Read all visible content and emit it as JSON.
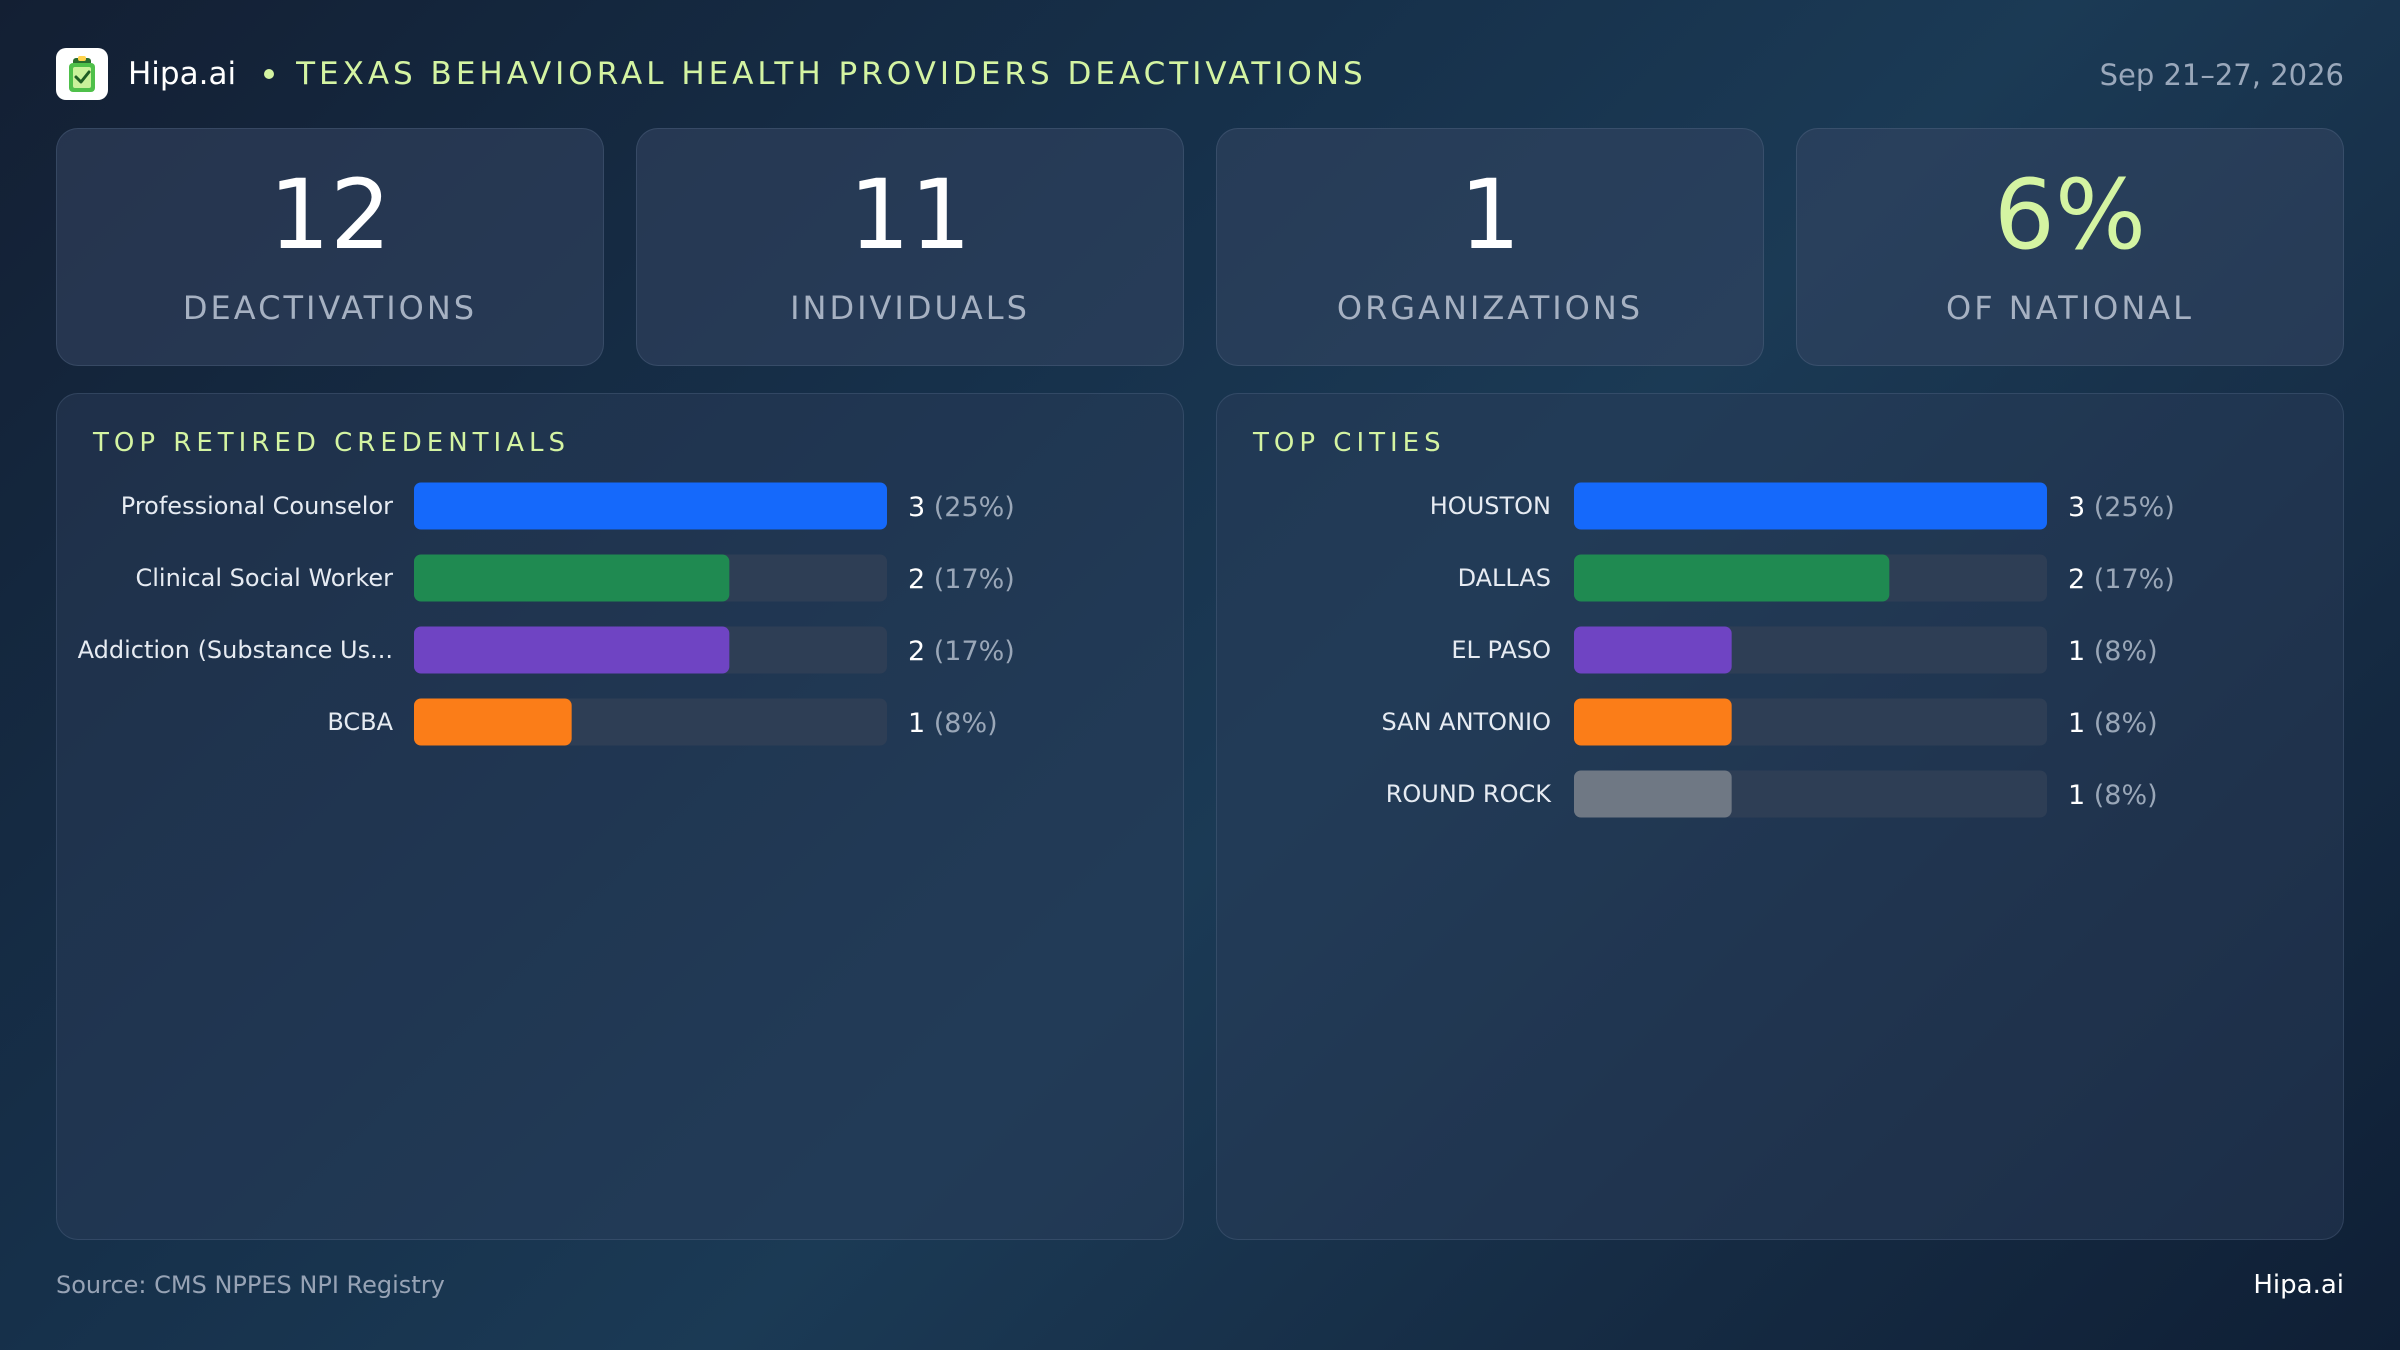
{
  "colors": {
    "accent": "#d4f4a2",
    "track": "#2e3e55",
    "blue": "#1569fb",
    "green": "#1f8a51",
    "purple": "#6f44c3",
    "orange": "#fb7d18",
    "gray": "#6f7884"
  },
  "header": {
    "brand": "Hipa.ai",
    "title": "TEXAS BEHAVIORAL HEALTH PROVIDERS DEACTIVATIONS",
    "date_range": "Sep 21–27, 2026",
    "logo_icon": "clipboard-check-icon"
  },
  "stats": [
    {
      "value": "12",
      "label": "DEACTIVATIONS",
      "highlight": false
    },
    {
      "value": "11",
      "label": "INDIVIDUALS",
      "highlight": false
    },
    {
      "value": "1",
      "label": "ORGANIZATIONS",
      "highlight": false
    },
    {
      "value": "6%",
      "label": "OF NATIONAL",
      "highlight": true
    }
  ],
  "chart_data": [
    {
      "type": "bar",
      "orientation": "horizontal",
      "title": "TOP RETIRED CREDENTIALS",
      "categories": [
        "Professional Counselor",
        "Clinical Social Worker",
        "Addiction (Substance Us...",
        "BCBA"
      ],
      "values": [
        3,
        2,
        2,
        1
      ],
      "value_labels": [
        "3",
        "2",
        "2",
        "1"
      ],
      "percent_labels": [
        "(25%)",
        "(17%)",
        "(17%)",
        "(8%)"
      ],
      "colors": [
        "#1569fb",
        "#1f8a51",
        "#6f44c3",
        "#fb7d18"
      ],
      "xlim": [
        0,
        3
      ]
    },
    {
      "type": "bar",
      "orientation": "horizontal",
      "title": "TOP CITIES",
      "categories": [
        "HOUSTON",
        "DALLAS",
        "EL PASO",
        "SAN ANTONIO",
        "ROUND ROCK"
      ],
      "values": [
        3,
        2,
        1,
        1,
        1
      ],
      "value_labels": [
        "3",
        "2",
        "1",
        "1",
        "1"
      ],
      "percent_labels": [
        "(25%)",
        "(17%)",
        "(8%)",
        "(8%)",
        "(8%)"
      ],
      "colors": [
        "#1569fb",
        "#1f8a51",
        "#6f44c3",
        "#fb7d18",
        "#6f7884"
      ],
      "xlim": [
        0,
        3
      ]
    }
  ],
  "footer": {
    "source": "Source: CMS NPPES NPI Registry",
    "brand": "Hipa.ai"
  }
}
